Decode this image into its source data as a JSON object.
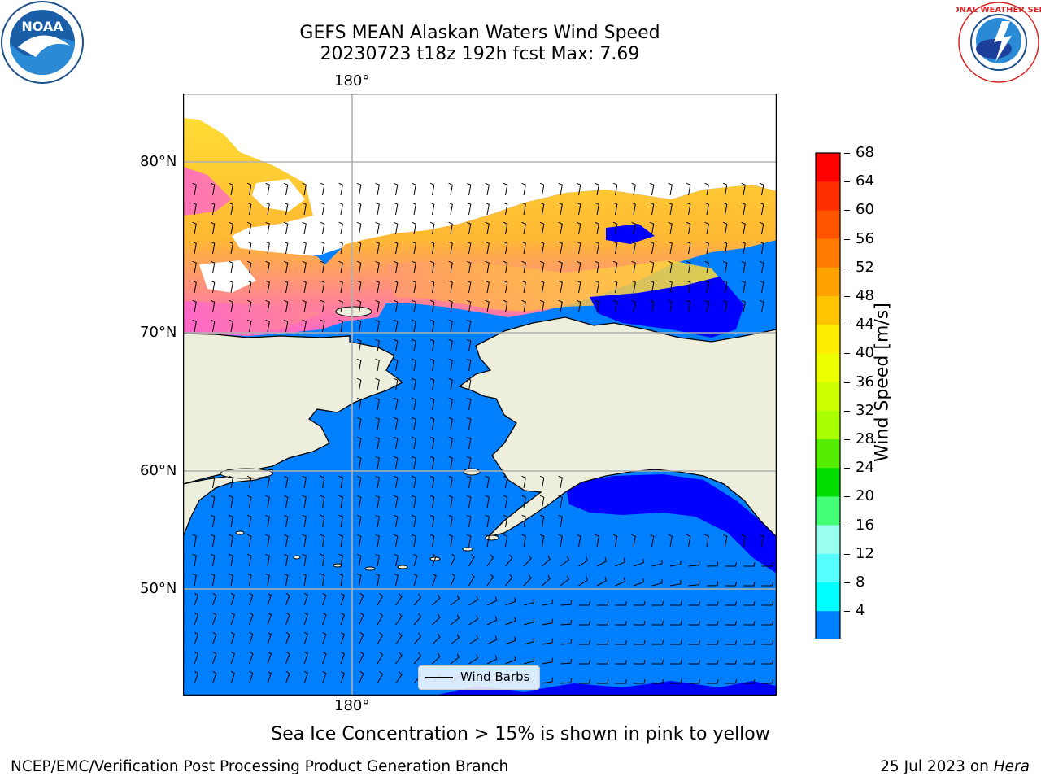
{
  "title": {
    "line1": "GEFS MEAN Alaskan Waters Wind Speed",
    "line2": "20230723 t18z 192h fcst   Max: 7.69"
  },
  "map": {
    "lon_labels": {
      "top": "180°",
      "bottom": "180°"
    },
    "lat_labels": [
      "80°N",
      "70°N",
      "60°N",
      "50°N"
    ],
    "colors": {
      "land": "#eeeedd",
      "ocean_4_8": "#0080ff",
      "ocean_below_4": "#0000ff",
      "ice_low": "#ff66cc",
      "ice_high": "#ffdd33",
      "grid": "#b0b0b0"
    }
  },
  "legend": {
    "label": "Wind Barbs"
  },
  "colorbar": {
    "title": "Wind Speed [m/s]",
    "ticks": [
      "68",
      "64",
      "60",
      "56",
      "52",
      "48",
      "44",
      "40",
      "36",
      "32",
      "28",
      "24",
      "20",
      "16",
      "12",
      "8",
      "4"
    ],
    "colors": [
      "#ff0000",
      "#ff2e00",
      "#ff5500",
      "#ff7c00",
      "#ffa200",
      "#ffc400",
      "#ffee00",
      "#eeff00",
      "#ccff00",
      "#aaff00",
      "#55ee00",
      "#00dd00",
      "#44ff77",
      "#99ffee",
      "#55ffff",
      "#00ffff",
      "#0080ff"
    ],
    "extend_color": "#0000ff"
  },
  "caption": "Sea Ice Concentration > 15% is shown in pink to yellow",
  "footer": {
    "left": "NCEP/EMC/Verification Post Processing Product Generation Branch",
    "right_prefix": "25 Jul 2023 on ",
    "right_host": "Hera"
  },
  "logos": {
    "left": "NOAA",
    "right_text": "NATIONAL WEATHER SERVICE"
  }
}
